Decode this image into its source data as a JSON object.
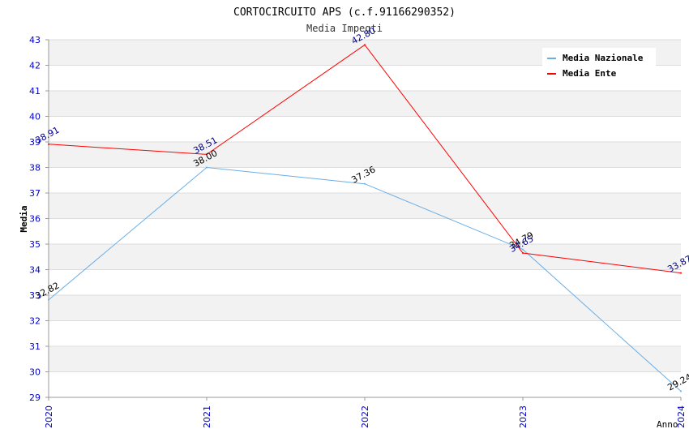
{
  "chart_data": {
    "type": "line",
    "title": "CORTOCIRCUITO APS (c.f.91166290352)",
    "subtitle": "Media Impegti",
    "xlabel": "Anno",
    "ylabel": "Media",
    "categories": [
      "2020",
      "2021",
      "2022",
      "2023",
      "2024"
    ],
    "ylim": [
      29,
      43
    ],
    "yticks": [
      "29",
      "30",
      "31",
      "32",
      "33",
      "34",
      "35",
      "36",
      "37",
      "38",
      "39",
      "40",
      "41",
      "42",
      "43"
    ],
    "grid": true,
    "legend_position": "top-right",
    "series": [
      {
        "name": "Media Nazionale",
        "color": "#6aaee6",
        "label_color": "#000000",
        "values": [
          32.82,
          38.0,
          37.36,
          34.79,
          29.24
        ],
        "labels": [
          "32.82",
          "38.00",
          "37.36",
          "34.79",
          "29.24"
        ]
      },
      {
        "name": "Media Ente",
        "color": "#ff0000",
        "label_color": "#00008b",
        "values": [
          38.91,
          38.51,
          42.8,
          34.65,
          33.87
        ],
        "labels": [
          "38.91",
          "38.51",
          "42.80",
          "34.65",
          "33.87"
        ]
      }
    ]
  }
}
